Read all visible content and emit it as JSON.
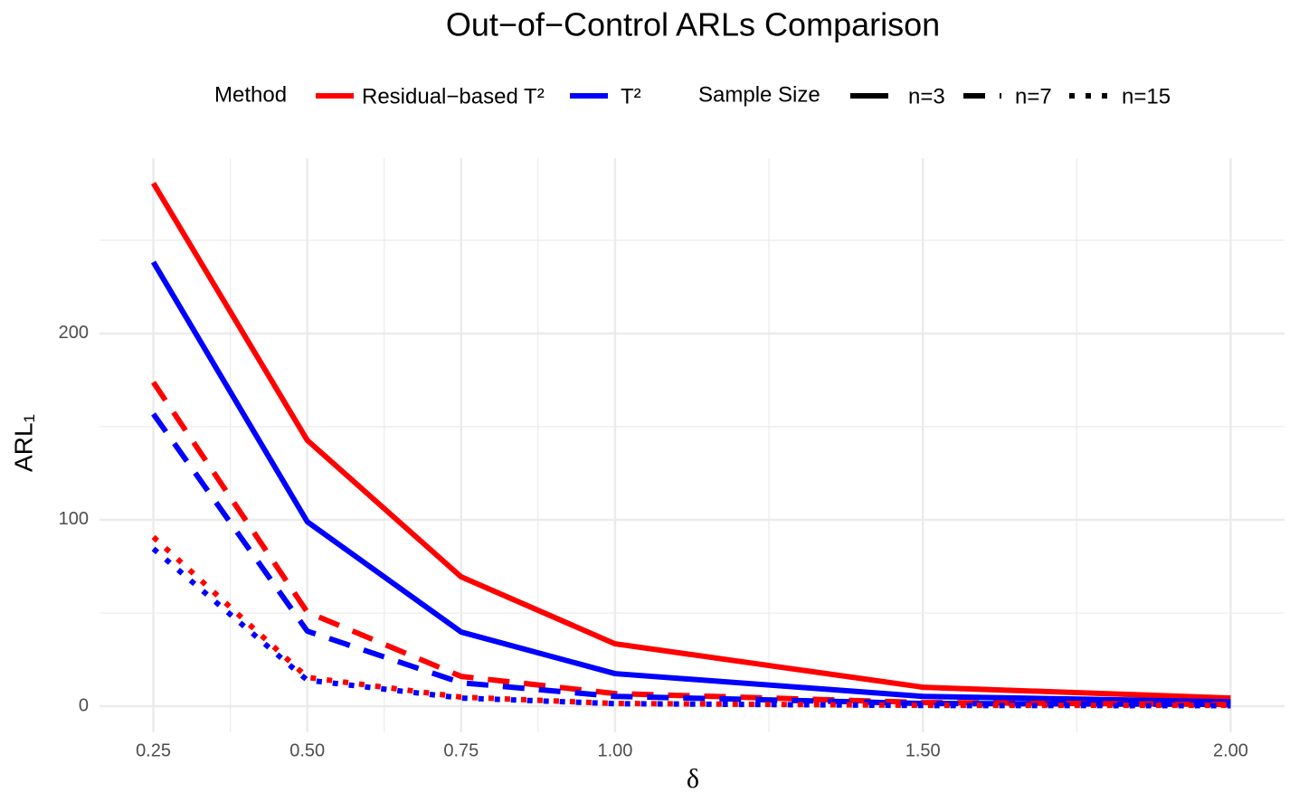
{
  "chart_data": {
    "type": "line",
    "title": "Out−of−Control ARLs Comparison",
    "x_label": "δ",
    "y_label": "ARL₁",
    "x": [
      0.25,
      0.5,
      0.75,
      1.0,
      1.5,
      2.0
    ],
    "xlim": [
      0.1625,
      2.0875
    ],
    "xticks": [
      {
        "value": 0.25,
        "label": "0.25"
      },
      {
        "value": 0.5,
        "label": "0.50"
      },
      {
        "value": 0.75,
        "label": "0.75"
      },
      {
        "value": 1.0,
        "label": "1.00"
      },
      {
        "value": 1.5,
        "label": "1.50"
      },
      {
        "value": 2.0,
        "label": "2.00"
      }
    ],
    "xminor": [
      0.375,
      0.625,
      0.875,
      1.25,
      1.75
    ],
    "ylim": [
      -14,
      294
    ],
    "yticks": [
      0,
      100,
      200
    ],
    "yminor": [
      50,
      150,
      250
    ],
    "grid": true,
    "legends": [
      {
        "title": "Method",
        "entries": [
          {
            "label": "Residual−based T²",
            "color": "#ff0000"
          },
          {
            "label": "T²",
            "color": "#0000ff"
          }
        ]
      },
      {
        "title": "Sample Size",
        "entries": [
          {
            "label": "n=3",
            "linetype": "solid"
          },
          {
            "label": "n=7",
            "linetype": "dashed"
          },
          {
            "label": "n=15",
            "linetype": "dotted"
          }
        ]
      }
    ],
    "series": [
      {
        "color": "#ff0000",
        "linetype": "solid",
        "values": [
          280.6,
          142.7,
          69.4,
          33.5,
          10.2,
          4.4
        ]
      },
      {
        "color": "#0000ff",
        "linetype": "solid",
        "values": [
          238.3,
          99,
          39.8,
          17.5,
          5.3,
          2.4
        ]
      },
      {
        "color": "#ff0000",
        "linetype": "dashed",
        "values": [
          173.8,
          50.5,
          16,
          6.8,
          2,
          1
        ]
      },
      {
        "color": "#0000ff",
        "linetype": "dashed",
        "values": [
          156.8,
          40.3,
          12.6,
          5.3,
          1.5,
          1
        ]
      },
      {
        "color": "#ff0000",
        "linetype": "dotted",
        "values": [
          90.8,
          15.5,
          4.9,
          1.5,
          0.5,
          0.5
        ]
      },
      {
        "color": "#0000ff",
        "linetype": "dotted",
        "values": [
          84.5,
          14,
          4.4,
          1.4,
          0.4,
          0.3
        ]
      }
    ]
  }
}
